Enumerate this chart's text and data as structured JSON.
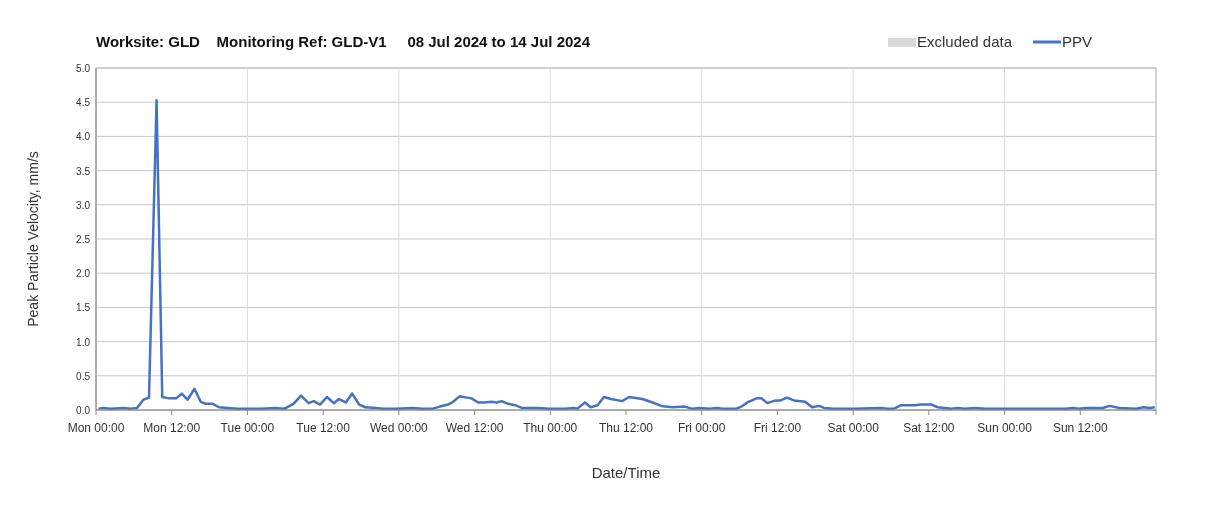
{
  "chart_data": {
    "type": "line",
    "title": "Worksite: GLD    Monitoring Ref: GLD-V1     08 Jul 2024 to 14 Jul 2024",
    "xlabel": "Date/Time",
    "ylabel": "Peak Particle Velocity, mm/s",
    "xlim": [
      "2024-07-08T00:00",
      "2024-07-15T00:00"
    ],
    "xticks": [
      {
        "value": "2024-07-08T00:00",
        "label": "Mon 00:00"
      },
      {
        "value": "2024-07-08T12:00",
        "label": "Mon 12:00"
      },
      {
        "value": "2024-07-09T00:00",
        "label": "Tue 00:00"
      },
      {
        "value": "2024-07-09T12:00",
        "label": "Tue 12:00"
      },
      {
        "value": "2024-07-10T00:00",
        "label": "Wed 00:00"
      },
      {
        "value": "2024-07-10T12:00",
        "label": "Wed 12:00"
      },
      {
        "value": "2024-07-11T00:00",
        "label": "Thu 00:00"
      },
      {
        "value": "2024-07-11T12:00",
        "label": "Thu 12:00"
      },
      {
        "value": "2024-07-12T00:00",
        "label": "Fri 00:00"
      },
      {
        "value": "2024-07-12T12:00",
        "label": "Fri 12:00"
      },
      {
        "value": "2024-07-13T00:00",
        "label": "Sat 00:00"
      },
      {
        "value": "2024-07-13T12:00",
        "label": "Sat 12:00"
      },
      {
        "value": "2024-07-14T00:00",
        "label": "Sun 00:00"
      },
      {
        "value": "2024-07-14T12:00",
        "label": "Sun 12:00"
      },
      {
        "value": "2024-07-15T00:00",
        "label": null
      }
    ],
    "ylim": [
      0,
      5
    ],
    "yticks": [
      {
        "value": 0,
        "label": "0.0"
      },
      {
        "value": 0.5,
        "label": "0.5"
      },
      {
        "value": 1,
        "label": "1.0"
      },
      {
        "value": 1.5,
        "label": "1.5"
      },
      {
        "value": 2,
        "label": "2.0"
      },
      {
        "value": 2.5,
        "label": "2.5"
      },
      {
        "value": 3,
        "label": "3.0"
      },
      {
        "value": 3.5,
        "label": "3.5"
      },
      {
        "value": 4,
        "label": "4.0"
      },
      {
        "value": 4.5,
        "label": "4.5"
      },
      {
        "value": 5,
        "label": "5.0"
      }
    ],
    "grid": true,
    "legend": "top right",
    "marker": "none",
    "line_style": "solid",
    "series": [
      {
        "name": "Excluded data",
        "type": "area",
        "color": "#d9d9d9"
      },
      {
        "name": "PPV",
        "color": "#4472c4",
        "x": [
          "2024-07-08T00:24",
          "2024-07-08T01:12",
          "2024-07-08T02:18",
          "2024-07-08T04:24",
          "2024-07-08T05:30",
          "2024-07-08T06:30",
          "2024-07-08T07:30",
          "2024-07-08T08:24",
          "2024-07-08T09:36",
          "2024-07-08T10:30",
          "2024-07-08T11:36",
          "2024-07-08T12:42",
          "2024-07-08T13:36",
          "2024-07-08T14:30",
          "2024-07-08T15:36",
          "2024-07-08T16:36",
          "2024-07-08T17:24",
          "2024-07-08T18:30",
          "2024-07-08T19:30",
          "2024-07-08T20:54",
          "2024-07-08T22:30",
          "2024-07-09T00:06",
          "2024-07-09T02:12",
          "2024-07-09T04:24",
          "2024-07-09T05:54",
          "2024-07-09T07:18",
          "2024-07-09T08:30",
          "2024-07-09T09:42",
          "2024-07-09T10:30",
          "2024-07-09T11:30",
          "2024-07-09T12:36",
          "2024-07-09T13:42",
          "2024-07-09T14:30",
          "2024-07-09T15:36",
          "2024-07-09T16:36",
          "2024-07-09T17:42",
          "2024-07-09T18:42",
          "2024-07-09T20:18",
          "2024-07-09T21:36",
          "2024-07-09T23:30",
          "2024-07-10T02:12",
          "2024-07-10T03:48",
          "2024-07-10T05:24",
          "2024-07-10T06:30",
          "2024-07-10T07:48",
          "2024-07-10T08:36",
          "2024-07-10T09:36",
          "2024-07-10T11:30",
          "2024-07-10T12:36",
          "2024-07-10T13:36",
          "2024-07-10T14:42",
          "2024-07-10T15:30",
          "2024-07-10T16:18",
          "2024-07-10T17:18",
          "2024-07-10T18:24",
          "2024-07-10T19:30",
          "2024-07-10T22:06",
          "2024-07-10T23:42",
          "2024-07-11T02:24",
          "2024-07-11T03:42",
          "2024-07-11T04:18",
          "2024-07-11T05:30",
          "2024-07-11T06:24",
          "2024-07-11T07:30",
          "2024-07-11T08:30",
          "2024-07-11T09:36",
          "2024-07-11T11:24",
          "2024-07-11T12:30",
          "2024-07-11T14:36",
          "2024-07-11T16:12",
          "2024-07-11T17:36",
          "2024-07-11T19:24",
          "2024-07-11T21:18",
          "2024-07-11T22:24",
          "2024-07-11T23:42",
          "2024-07-12T01:18",
          "2024-07-12T02:18",
          "2024-07-12T03:24",
          "2024-07-12T05:30",
          "2024-07-12T06:18",
          "2024-07-12T07:24",
          "2024-07-12T08:42",
          "2024-07-12T09:30",
          "2024-07-12T10:24",
          "2024-07-12T11:42",
          "2024-07-12T12:30",
          "2024-07-12T13:30",
          "2024-07-12T14:36",
          "2024-07-12T16:24",
          "2024-07-12T17:30",
          "2024-07-12T18:36",
          "2024-07-12T19:24",
          "2024-07-12T20:54",
          "2024-07-13T00:06",
          "2024-07-13T04:24",
          "2024-07-13T05:24",
          "2024-07-13T06:30",
          "2024-07-13T07:36",
          "2024-07-13T09:42",
          "2024-07-13T10:48",
          "2024-07-13T12:24",
          "2024-07-13T13:24",
          "2024-07-13T15:36",
          "2024-07-13T16:36",
          "2024-07-13T17:42",
          "2024-07-13T19:18",
          "2024-07-13T20:54",
          "2024-07-14T00:06",
          "2024-07-14T05:24",
          "2024-07-14T09:42",
          "2024-07-14T10:48",
          "2024-07-14T11:48",
          "2024-07-14T12:54",
          "2024-07-14T15:36",
          "2024-07-14T16:36",
          "2024-07-14T18:12",
          "2024-07-14T20:54",
          "2024-07-14T22:00",
          "2024-07-14T23:00",
          "2024-07-14T23:48"
        ],
        "values": [
          0.02,
          0.03,
          0.02,
          0.03,
          0.02,
          0.03,
          0.15,
          0.18,
          4.53,
          0.19,
          0.17,
          0.17,
          0.24,
          0.15,
          0.31,
          0.12,
          0.09,
          0.09,
          0.04,
          0.03,
          0.02,
          0.02,
          0.02,
          0.03,
          0.02,
          0.09,
          0.21,
          0.1,
          0.13,
          0.08,
          0.19,
          0.1,
          0.16,
          0.11,
          0.24,
          0.08,
          0.04,
          0.03,
          0.02,
          0.02,
          0.03,
          0.02,
          0.02,
          0.05,
          0.08,
          0.12,
          0.2,
          0.17,
          0.11,
          0.11,
          0.12,
          0.11,
          0.13,
          0.09,
          0.07,
          0.03,
          0.03,
          0.02,
          0.02,
          0.03,
          0.02,
          0.11,
          0.04,
          0.07,
          0.19,
          0.16,
          0.13,
          0.19,
          0.16,
          0.11,
          0.06,
          0.04,
          0.05,
          0.02,
          0.03,
          0.02,
          0.03,
          0.02,
          0.02,
          0.05,
          0.12,
          0.17,
          0.17,
          0.1,
          0.14,
          0.14,
          0.18,
          0.14,
          0.12,
          0.04,
          0.06,
          0.03,
          0.02,
          0.02,
          0.03,
          0.02,
          0.02,
          0.07,
          0.07,
          0.08,
          0.08,
          0.04,
          0.02,
          0.03,
          0.02,
          0.03,
          0.02,
          0.02,
          0.02,
          0.02,
          0.03,
          0.02,
          0.03,
          0.03,
          0.06,
          0.03,
          0.02,
          0.04,
          0.03,
          0.04
        ]
      }
    ]
  }
}
